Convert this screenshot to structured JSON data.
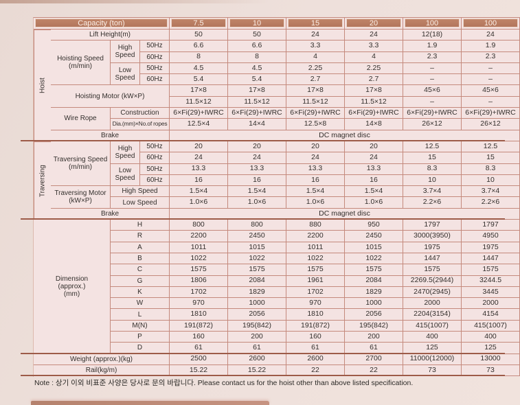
{
  "colors": {
    "page_bg": "#eee0db",
    "table_bg": "#f4e3e2",
    "header_fill": "#b87c62",
    "header_text": "#fdf1e9",
    "grid_line": "#c4897c",
    "section_line": "#9d5b48",
    "text": "#332f2c"
  },
  "note": "Note : 상기 이외 비표준 사양은 당사로 문의 바랍니다.  Please contact us for the hoist other than above listed specification.",
  "table": {
    "header": {
      "label": "Capacity (ton)",
      "columns": [
        "7.5",
        "10",
        "15",
        "20",
        "100",
        "100"
      ]
    },
    "rows": [
      {
        "name": "lift-height",
        "labels": [
          {
            "col": 1,
            "rowspan": 10,
            "text": "Hoist",
            "vertical": true
          },
          {
            "col": 2,
            "colspan": 3,
            "text": "Lift Height(m)"
          }
        ],
        "values": [
          "50",
          "50",
          "24",
          "24",
          "12(18)",
          "24"
        ]
      },
      {
        "name": "hoisting-speed-high-50hz",
        "labels": [
          {
            "col": 2,
            "rowspan": 4,
            "text": "Hoisting Speed\n(m/min)"
          },
          {
            "col": 3,
            "rowspan": 2,
            "text": "High\nSpeed"
          },
          {
            "col": 4,
            "text": "50Hz"
          }
        ],
        "values": [
          "6.6",
          "6.6",
          "3.3",
          "3.3",
          "1.9",
          "1.9"
        ]
      },
      {
        "name": "hoisting-speed-high-60hz",
        "labels": [
          {
            "col": 4,
            "text": "60Hz"
          }
        ],
        "values": [
          "8",
          "8",
          "4",
          "4",
          "2.3",
          "2.3"
        ]
      },
      {
        "name": "hoisting-speed-low-50hz",
        "labels": [
          {
            "col": 3,
            "rowspan": 2,
            "text": "Low\nSpeed"
          },
          {
            "col": 4,
            "text": "50Hz"
          }
        ],
        "values": [
          "4.5",
          "4.5",
          "2.25",
          "2.25",
          "–",
          "–"
        ]
      },
      {
        "name": "hoisting-speed-low-60hz",
        "labels": [
          {
            "col": 4,
            "text": "60Hz"
          }
        ],
        "values": [
          "5.4",
          "5.4",
          "2.7",
          "2.7",
          "–",
          "–"
        ]
      },
      {
        "name": "hoisting-motor-1",
        "labels": [
          {
            "col": 2,
            "colspan": 3,
            "rowspan": 2,
            "text": "Hoisting Motor (kW×P)"
          }
        ],
        "values": [
          "17×8",
          "17×8",
          "17×8",
          "17×8",
          "45×6",
          "45×6"
        ]
      },
      {
        "name": "hoisting-motor-2",
        "labels": [],
        "values": [
          "11.5×12",
          "11.5×12",
          "11.5×12",
          "11.5×12",
          "–",
          "–"
        ]
      },
      {
        "name": "wire-rope-construction",
        "labels": [
          {
            "col": 2,
            "rowspan": 2,
            "text": "Wire Rope"
          },
          {
            "col": 3,
            "colspan": 2,
            "text": "Construction"
          }
        ],
        "values": [
          "6×Fi(29)+IWRC",
          "6×Fi(29)+IWRC",
          "6×Fi(29)+IWRC",
          "6×Fi(29)+IWRC",
          "6×Fi(29)+IWRC",
          "6×Fi(29)+IWRC"
        ]
      },
      {
        "name": "wire-rope-dia",
        "labels": [
          {
            "col": 3,
            "colspan": 2,
            "text": "Dia.(mm)×No.of ropes",
            "small": true
          }
        ],
        "values": [
          "12.5×4",
          "14×4",
          "12.5×8",
          "14×8",
          "26×12",
          "26×12"
        ]
      },
      {
        "name": "hoist-brake",
        "labels": [
          {
            "col": 2,
            "colspan": 3,
            "text": "Brake"
          }
        ],
        "merged": "DC magnet disc"
      },
      {
        "name": "traversing-speed-high-50hz",
        "labels": [
          {
            "col": 1,
            "rowspan": 7,
            "text": "Traversing",
            "vertical": true
          },
          {
            "col": 2,
            "rowspan": 4,
            "text": "Traversing Speed\n(m/min)"
          },
          {
            "col": 3,
            "rowspan": 2,
            "text": "High\nSpeed"
          },
          {
            "col": 4,
            "text": "50Hz"
          }
        ],
        "values": [
          "20",
          "20",
          "20",
          "20",
          "12.5",
          "12.5"
        ]
      },
      {
        "name": "traversing-speed-high-60hz",
        "labels": [
          {
            "col": 4,
            "text": "60Hz"
          }
        ],
        "values": [
          "24",
          "24",
          "24",
          "24",
          "15",
          "15"
        ]
      },
      {
        "name": "traversing-speed-low-50hz",
        "labels": [
          {
            "col": 3,
            "rowspan": 2,
            "text": "Low\nSpeed"
          },
          {
            "col": 4,
            "text": "50Hz"
          }
        ],
        "values": [
          "13.3",
          "13.3",
          "13.3",
          "13.3",
          "8.3",
          "8.3"
        ]
      },
      {
        "name": "traversing-speed-low-60hz",
        "labels": [
          {
            "col": 4,
            "text": "60Hz"
          }
        ],
        "values": [
          "16",
          "16",
          "16",
          "16",
          "10",
          "10"
        ]
      },
      {
        "name": "traversing-motor-high",
        "labels": [
          {
            "col": 2,
            "rowspan": 2,
            "text": "Traversing Motor\n(kW×P)"
          },
          {
            "col": 3,
            "colspan": 2,
            "text": "High Speed"
          }
        ],
        "values": [
          "1.5×4",
          "1.5×4",
          "1.5×4",
          "1.5×4",
          "3.7×4",
          "3.7×4"
        ]
      },
      {
        "name": "traversing-motor-low",
        "labels": [
          {
            "col": 3,
            "colspan": 2,
            "text": "Low Speed"
          }
        ],
        "values": [
          "1.0×6",
          "1.0×6",
          "1.0×6",
          "1.0×6",
          "2.2×6",
          "2.2×6"
        ]
      },
      {
        "name": "traversing-brake",
        "labels": [
          {
            "col": 2,
            "colspan": 3,
            "text": "Brake"
          }
        ],
        "merged": "DC magnet disc"
      },
      {
        "name": "dimension-h",
        "labels": [
          {
            "col": 1,
            "colspan": 2,
            "rowspan": 12,
            "text": "Dimension\n(approx.)\n(mm)"
          },
          {
            "col": 3,
            "colspan": 2,
            "text": "H"
          }
        ],
        "values": [
          "800",
          "800",
          "880",
          "950",
          "1797",
          "1797"
        ]
      },
      {
        "name": "dimension-r",
        "labels": [
          {
            "col": 3,
            "colspan": 2,
            "text": "R"
          }
        ],
        "values": [
          "2200",
          "2450",
          "2200",
          "2450",
          "3000(3950)",
          "4950"
        ]
      },
      {
        "name": "dimension-a",
        "labels": [
          {
            "col": 3,
            "colspan": 2,
            "text": "A"
          }
        ],
        "values": [
          "1011",
          "1015",
          "1011",
          "1015",
          "1975",
          "1975"
        ]
      },
      {
        "name": "dimension-b",
        "labels": [
          {
            "col": 3,
            "colspan": 2,
            "text": "B"
          }
        ],
        "values": [
          "1022",
          "1022",
          "1022",
          "1022",
          "1447",
          "1447"
        ]
      },
      {
        "name": "dimension-c",
        "labels": [
          {
            "col": 3,
            "colspan": 2,
            "text": "C"
          }
        ],
        "values": [
          "1575",
          "1575",
          "1575",
          "1575",
          "1575",
          "1575"
        ]
      },
      {
        "name": "dimension-g",
        "labels": [
          {
            "col": 3,
            "colspan": 2,
            "text": "G"
          }
        ],
        "values": [
          "1806",
          "2084",
          "1961",
          "2084",
          "2269.5(2944)",
          "3244.5"
        ]
      },
      {
        "name": "dimension-k",
        "labels": [
          {
            "col": 3,
            "colspan": 2,
            "text": "K"
          }
        ],
        "values": [
          "1702",
          "1829",
          "1702",
          "1829",
          "2470(2945)",
          "3445"
        ]
      },
      {
        "name": "dimension-w",
        "labels": [
          {
            "col": 3,
            "colspan": 2,
            "text": "W"
          }
        ],
        "values": [
          "970",
          "1000",
          "970",
          "1000",
          "2000",
          "2000"
        ]
      },
      {
        "name": "dimension-l",
        "labels": [
          {
            "col": 3,
            "colspan": 2,
            "text": "L"
          }
        ],
        "values": [
          "1810",
          "2056",
          "1810",
          "2056",
          "2204(3154)",
          "4154"
        ]
      },
      {
        "name": "dimension-mn",
        "labels": [
          {
            "col": 3,
            "colspan": 2,
            "text": "M(N)"
          }
        ],
        "values": [
          "191(872)",
          "195(842)",
          "191(872)",
          "195(842)",
          "415(1007)",
          "415(1007)"
        ]
      },
      {
        "name": "dimension-p",
        "labels": [
          {
            "col": 3,
            "colspan": 2,
            "text": "P"
          }
        ],
        "values": [
          "160",
          "200",
          "160",
          "200",
          "400",
          "400"
        ]
      },
      {
        "name": "dimension-d",
        "labels": [
          {
            "col": 3,
            "colspan": 2,
            "text": "D"
          }
        ],
        "values": [
          "61",
          "61",
          "61",
          "61",
          "125",
          "125"
        ]
      },
      {
        "name": "weight",
        "labels": [
          {
            "col": 1,
            "colspan": 4,
            "text": "Weight (approx.)(kg)"
          }
        ],
        "values": [
          "2500",
          "2600",
          "2600",
          "2700",
          "11000(12000)",
          "13000"
        ]
      },
      {
        "name": "rail",
        "labels": [
          {
            "col": 1,
            "colspan": 4,
            "text": "Rail(kg/m)"
          }
        ],
        "values": [
          "15.22",
          "15.22",
          "22",
          "22",
          "73",
          "73"
        ]
      }
    ]
  }
}
